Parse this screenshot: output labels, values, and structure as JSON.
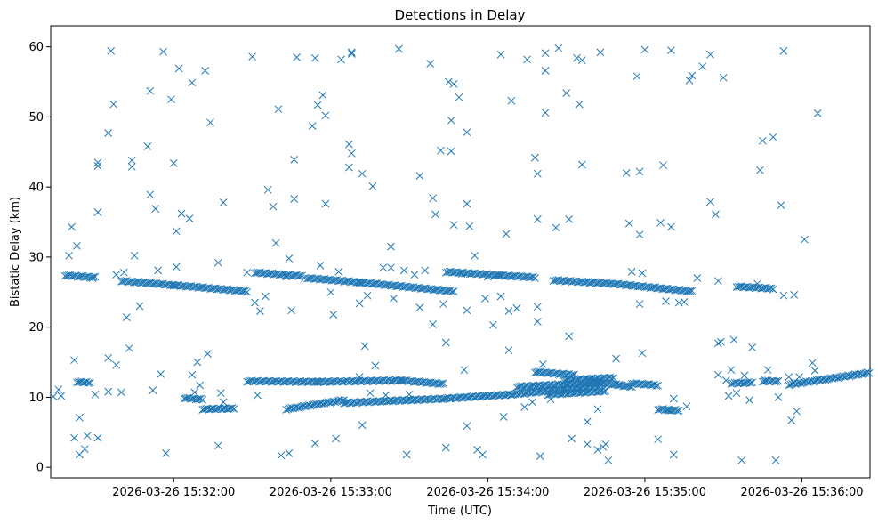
{
  "chart_data": {
    "type": "scatter",
    "title": "Detections in Delay",
    "xlabel": "Time (UTC)",
    "ylabel": "Bistatic Delay (km)",
    "marker": "x",
    "color": "#1f77b4",
    "xlim": [
      "2026-03-26 15:31:13",
      "2026-03-26 15:36:26"
    ],
    "ylim": [
      -1.5,
      63
    ],
    "xticks": [
      "2026-03-26 15:32:00",
      "2026-03-26 15:33:00",
      "2026-03-26 15:34:00",
      "2026-03-26 15:35:00",
      "2026-03-26 15:36:00"
    ],
    "yticks": [
      0,
      10,
      20,
      30,
      40,
      50,
      60
    ],
    "grid": false,
    "start": "2026-03-26 15:31:13",
    "tracks": [
      {
        "from": [
          5.5,
          27.4
        ],
        "to": [
          17,
          27.1
        ]
      },
      {
        "from": [
          27,
          26.6
        ],
        "to": [
          47,
          26.0
        ]
      },
      {
        "from": [
          47,
          26.0
        ],
        "to": [
          75,
          25.1
        ]
      },
      {
        "from": [
          78,
          27.8
        ],
        "to": [
          96,
          27.3
        ]
      },
      {
        "from": [
          98,
          27.0
        ],
        "to": [
          118,
          26.4
        ]
      },
      {
        "from": [
          118,
          26.4
        ],
        "to": [
          154,
          25.1
        ]
      },
      {
        "from": [
          151,
          27.9
        ],
        "to": [
          172,
          27.4
        ]
      },
      {
        "from": [
          171,
          27.4
        ],
        "to": [
          185,
          27.1
        ]
      },
      {
        "from": [
          192,
          26.7
        ],
        "to": [
          215,
          26.2
        ]
      },
      {
        "from": [
          215,
          26.2
        ],
        "to": [
          245,
          25.1
        ]
      },
      {
        "from": [
          262,
          25.8
        ],
        "to": [
          276,
          25.5
        ]
      },
      {
        "from": [
          10,
          12.2
        ],
        "to": [
          15,
          12.1
        ]
      },
      {
        "from": [
          51,
          9.9
        ],
        "to": [
          58,
          9.7
        ]
      },
      {
        "from": [
          58,
          8.3
        ],
        "to": [
          70,
          8.4
        ]
      },
      {
        "from": [
          75,
          12.3
        ],
        "to": [
          102,
          12.2
        ]
      },
      {
        "from": [
          102,
          12.2
        ],
        "to": [
          134,
          12.4
        ]
      },
      {
        "from": [
          134,
          12.4
        ],
        "to": [
          150,
          11.9
        ]
      },
      {
        "from": [
          90,
          8.3
        ],
        "to": [
          112,
          9.6
        ]
      },
      {
        "from": [
          112,
          9.2
        ],
        "to": [
          150,
          9.8
        ]
      },
      {
        "from": [
          150,
          9.8
        ],
        "to": [
          176,
          10.4
        ]
      },
      {
        "from": [
          176,
          10.4
        ],
        "to": [
          210,
          11.6
        ]
      },
      {
        "from": [
          178,
          11.5
        ],
        "to": [
          211,
          12.1
        ]
      },
      {
        "from": [
          185,
          13.6
        ],
        "to": [
          200,
          13.2
        ]
      },
      {
        "from": [
          196,
          12.4
        ],
        "to": [
          215,
          12.8
        ]
      },
      {
        "from": [
          190,
          10.4
        ],
        "to": [
          212,
          10.9
        ]
      },
      {
        "from": [
          205,
          12.3
        ],
        "to": [
          222,
          11.5
        ]
      },
      {
        "from": [
          222,
          12.0
        ],
        "to": [
          232,
          11.7
        ]
      },
      {
        "from": [
          232,
          8.3
        ],
        "to": [
          240,
          8.1
        ]
      },
      {
        "from": [
          260,
          12.0
        ],
        "to": [
          268,
          12.1
        ]
      },
      {
        "from": [
          272,
          12.3
        ],
        "to": [
          278,
          12.3
        ]
      },
      {
        "from": [
          282,
          11.8
        ],
        "to": [
          340,
          15.0
        ]
      }
    ],
    "scatter_points": [
      [
        1,
        10.1
      ],
      [
        3,
        11.1
      ],
      [
        4,
        10.2
      ],
      [
        7,
        30.2
      ],
      [
        8,
        34.3
      ],
      [
        9,
        15.3
      ],
      [
        9,
        4.2
      ],
      [
        10,
        31.6
      ],
      [
        11,
        7.1
      ],
      [
        11,
        1.8
      ],
      [
        13,
        2.6
      ],
      [
        14,
        4.5
      ],
      [
        16,
        27.0
      ],
      [
        17,
        10.4
      ],
      [
        18,
        43.5
      ],
      [
        18,
        43.0
      ],
      [
        18,
        36.4
      ],
      [
        18,
        4.2
      ],
      [
        22,
        47.7
      ],
      [
        22,
        15.6
      ],
      [
        22,
        10.8
      ],
      [
        23,
        59.4
      ],
      [
        24,
        51.8
      ],
      [
        25,
        14.6
      ],
      [
        25,
        27.5
      ],
      [
        27,
        10.7
      ],
      [
        28,
        27.8
      ],
      [
        29,
        21.4
      ],
      [
        30,
        17.0
      ],
      [
        31,
        42.9
      ],
      [
        31,
        43.8
      ],
      [
        32,
        30.2
      ],
      [
        34,
        23.0
      ],
      [
        37,
        45.8
      ],
      [
        38,
        53.7
      ],
      [
        38,
        38.9
      ],
      [
        39,
        11.0
      ],
      [
        40,
        36.9
      ],
      [
        41,
        28.1
      ],
      [
        42,
        13.3
      ],
      [
        43,
        59.3
      ],
      [
        44,
        2.0
      ],
      [
        46,
        52.5
      ],
      [
        47,
        43.4
      ],
      [
        48,
        33.7
      ],
      [
        48,
        28.6
      ],
      [
        49,
        56.9
      ],
      [
        50,
        36.2
      ],
      [
        53,
        35.5
      ],
      [
        54,
        13.2
      ],
      [
        54,
        54.9
      ],
      [
        55,
        10.7
      ],
      [
        56,
        15.0
      ],
      [
        57,
        11.7
      ],
      [
        59,
        56.6
      ],
      [
        60,
        16.2
      ],
      [
        61,
        49.2
      ],
      [
        64,
        29.2
      ],
      [
        64,
        3.1
      ],
      [
        65,
        10.6
      ],
      [
        66,
        9.3
      ],
      [
        66,
        37.8
      ],
      [
        75,
        27.8
      ],
      [
        77,
        58.6
      ],
      [
        78,
        23.5
      ],
      [
        79,
        10.3
      ],
      [
        80,
        22.3
      ],
      [
        82,
        24.4
      ],
      [
        83,
        39.6
      ],
      [
        85,
        37.2
      ],
      [
        86,
        32.0
      ],
      [
        87,
        51.1
      ],
      [
        88,
        1.7
      ],
      [
        90,
        27.2
      ],
      [
        91,
        29.8
      ],
      [
        91,
        2.0
      ],
      [
        92,
        22.4
      ],
      [
        93,
        43.9
      ],
      [
        93,
        38.3
      ],
      [
        94,
        58.5
      ],
      [
        97,
        27.0
      ],
      [
        100,
        48.7
      ],
      [
        101,
        58.4
      ],
      [
        101,
        3.4
      ],
      [
        102,
        51.7
      ],
      [
        103,
        28.8
      ],
      [
        104,
        53.1
      ],
      [
        105,
        50.2
      ],
      [
        105,
        37.6
      ],
      [
        107,
        25.0
      ],
      [
        108,
        21.8
      ],
      [
        109,
        4.1
      ],
      [
        110,
        27.9
      ],
      [
        111,
        58.2
      ],
      [
        114,
        46.1
      ],
      [
        114,
        42.8
      ],
      [
        115,
        44.8
      ],
      [
        115,
        59.2
      ],
      [
        115,
        59.0
      ],
      [
        118,
        23.4
      ],
      [
        118,
        12.9
      ],
      [
        119,
        41.9
      ],
      [
        119,
        6.0
      ],
      [
        120,
        17.3
      ],
      [
        121,
        24.5
      ],
      [
        122,
        10.6
      ],
      [
        123,
        40.1
      ],
      [
        124,
        14.5
      ],
      [
        127,
        28.5
      ],
      [
        128,
        10.3
      ],
      [
        130,
        31.5
      ],
      [
        130,
        28.5
      ],
      [
        131,
        24.1
      ],
      [
        133,
        59.7
      ],
      [
        135,
        28.1
      ],
      [
        136,
        1.8
      ],
      [
        137,
        10.4
      ],
      [
        139,
        27.5
      ],
      [
        141,
        41.6
      ],
      [
        141,
        22.8
      ],
      [
        143,
        28.1
      ],
      [
        145,
        57.6
      ],
      [
        146,
        38.4
      ],
      [
        146,
        20.4
      ],
      [
        147,
        36.1
      ],
      [
        149,
        45.2
      ],
      [
        150,
        23.3
      ],
      [
        151,
        17.8
      ],
      [
        151,
        2.8
      ],
      [
        152,
        55.0
      ],
      [
        153,
        49.5
      ],
      [
        153,
        45.1
      ],
      [
        154,
        54.7
      ],
      [
        154,
        34.6
      ],
      [
        156,
        52.8
      ],
      [
        157,
        27.6
      ],
      [
        158,
        13.9
      ],
      [
        159,
        47.8
      ],
      [
        159,
        37.6
      ],
      [
        159,
        22.4
      ],
      [
        159,
        5.9
      ],
      [
        160,
        34.4
      ],
      [
        162,
        30.2
      ],
      [
        163,
        2.5
      ],
      [
        165,
        1.8
      ],
      [
        166,
        24.1
      ],
      [
        167,
        27.2
      ],
      [
        169,
        20.3
      ],
      [
        172,
        58.9
      ],
      [
        172,
        24.4
      ],
      [
        173,
        7.2
      ],
      [
        174,
        33.3
      ],
      [
        175,
        22.3
      ],
      [
        175,
        16.7
      ],
      [
        176,
        52.3
      ],
      [
        178,
        22.7
      ],
      [
        180,
        11.0
      ],
      [
        181,
        8.6
      ],
      [
        182,
        58.2
      ],
      [
        184,
        9.3
      ],
      [
        185,
        44.2
      ],
      [
        186,
        41.9
      ],
      [
        186,
        35.4
      ],
      [
        186,
        20.8
      ],
      [
        186,
        22.9
      ],
      [
        187,
        1.6
      ],
      [
        188,
        14.7
      ],
      [
        189,
        56.6
      ],
      [
        189,
        59.1
      ],
      [
        189,
        50.6
      ],
      [
        191,
        9.7
      ],
      [
        193,
        34.2
      ],
      [
        194,
        59.8
      ],
      [
        196,
        11.3
      ],
      [
        197,
        53.4
      ],
      [
        198,
        35.4
      ],
      [
        198,
        18.7
      ],
      [
        199,
        4.1
      ],
      [
        201,
        58.4
      ],
      [
        202,
        51.8
      ],
      [
        203,
        58.1
      ],
      [
        203,
        43.2
      ],
      [
        205,
        6.5
      ],
      [
        205,
        3.3
      ],
      [
        209,
        8.3
      ],
      [
        209,
        2.5
      ],
      [
        210,
        59.2
      ],
      [
        211,
        2.9
      ],
      [
        212,
        3.3
      ],
      [
        213,
        1.0
      ],
      [
        216,
        15.5
      ],
      [
        217,
        11.8
      ],
      [
        220,
        42.0
      ],
      [
        221,
        34.8
      ],
      [
        222,
        27.9
      ],
      [
        224,
        55.8
      ],
      [
        225,
        33.2
      ],
      [
        225,
        42.2
      ],
      [
        225,
        23.3
      ],
      [
        226,
        16.3
      ],
      [
        226,
        27.7
      ],
      [
        227,
        59.6
      ],
      [
        232,
        4.0
      ],
      [
        233,
        34.9
      ],
      [
        234,
        43.1
      ],
      [
        235,
        23.7
      ],
      [
        236,
        8.1
      ],
      [
        237,
        59.5
      ],
      [
        237,
        34.3
      ],
      [
        238,
        9.8
      ],
      [
        238,
        1.8
      ],
      [
        240,
        23.5
      ],
      [
        242,
        23.6
      ],
      [
        243,
        8.7
      ],
      [
        244,
        55.2
      ],
      [
        245,
        55.9
      ],
      [
        247,
        27.0
      ],
      [
        249,
        57.2
      ],
      [
        252,
        58.9
      ],
      [
        252,
        37.9
      ],
      [
        254,
        36.1
      ],
      [
        255,
        26.6
      ],
      [
        255,
        13.2
      ],
      [
        255,
        17.7
      ],
      [
        256,
        17.9
      ],
      [
        257,
        55.6
      ],
      [
        258,
        12.4
      ],
      [
        259,
        10.2
      ],
      [
        260,
        13.9
      ],
      [
        261,
        18.2
      ],
      [
        262,
        10.6
      ],
      [
        264,
        1.0
      ],
      [
        265,
        13.1
      ],
      [
        267,
        9.6
      ],
      [
        268,
        17.1
      ],
      [
        270,
        26.2
      ],
      [
        271,
        42.4
      ],
      [
        272,
        46.6
      ],
      [
        273,
        12.4
      ],
      [
        274,
        13.9
      ],
      [
        276,
        47.1
      ],
      [
        277,
        1.0
      ],
      [
        278,
        10.0
      ],
      [
        279,
        37.4
      ],
      [
        280,
        59.4
      ],
      [
        280,
        24.5
      ],
      [
        282,
        12.9
      ],
      [
        283,
        6.7
      ],
      [
        284,
        24.6
      ],
      [
        285,
        8.0
      ],
      [
        286,
        12.9
      ],
      [
        288,
        32.5
      ],
      [
        291,
        14.9
      ],
      [
        292,
        13.8
      ],
      [
        293,
        50.5
      ]
    ]
  }
}
